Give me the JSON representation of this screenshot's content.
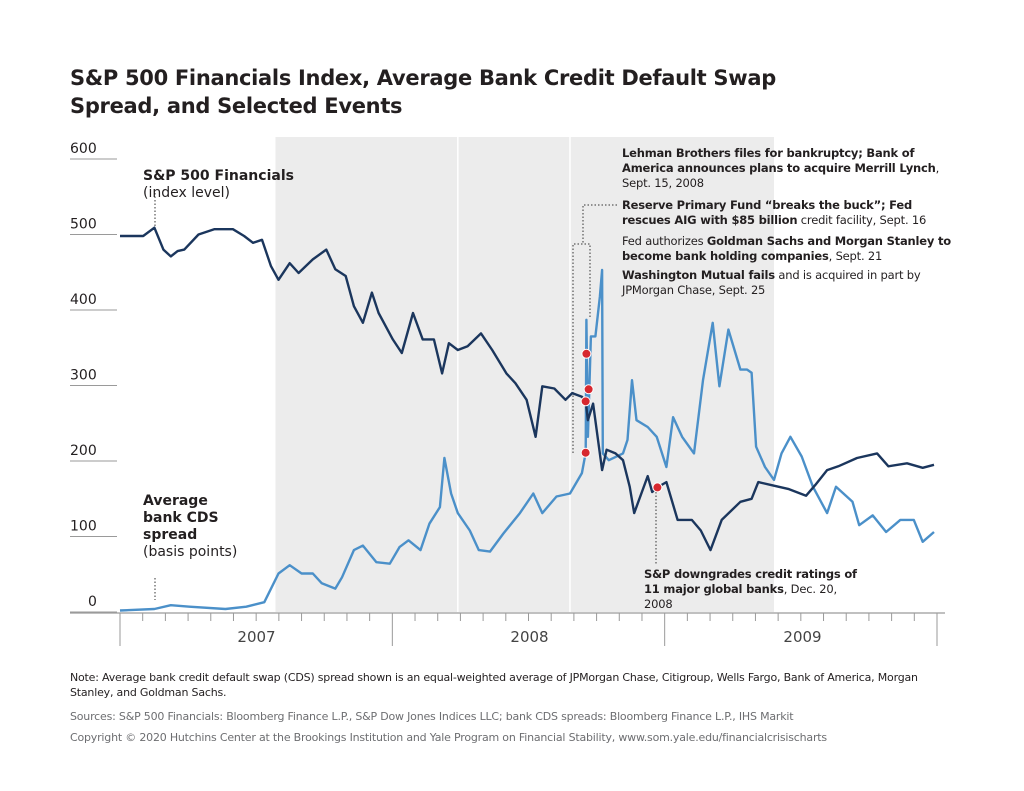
{
  "title": "S&P 500 Financials Index, Average Bank Credit Default Swap Spread, and Selected Events",
  "colors": {
    "financials": "#1b365d",
    "cds": "#4b90c9",
    "shading": "#ececec",
    "event_dot": "#d7282f"
  },
  "chart_data": {
    "type": "line",
    "title": "S&P 500 Financials Index, Average Bank Credit Default Swap Spread, and Selected Events",
    "x_range": [
      "2007-01-01",
      "2009-12-31"
    ],
    "x_tick_labels": [
      "2007",
      "2008",
      "2009"
    ],
    "ylim": [
      0,
      600
    ],
    "y_ticks": [
      0,
      100,
      200,
      300,
      400,
      500,
      600
    ],
    "grid": false,
    "legend": "inline labels",
    "series_labels": {
      "financials": {
        "name": "S&P 500 Financials",
        "unit": "(index level)"
      },
      "cds": {
        "name_lines": [
          "Average",
          "bank CDS",
          "spread"
        ],
        "unit": "(basis points)"
      }
    },
    "shaded_periods": [
      [
        "2007-07-28",
        "2008-03-27"
      ],
      [
        "2008-03-29",
        "2008-08-24"
      ],
      [
        "2008-08-26",
        "2009-05-25"
      ]
    ],
    "series": [
      {
        "name": "S&P 500 Financials",
        "key": "financials",
        "points": [
          [
            "2007-01-01",
            498
          ],
          [
            "2007-02-01",
            498
          ],
          [
            "2007-02-16",
            509
          ],
          [
            "2007-02-28",
            480
          ],
          [
            "2007-03-10",
            471
          ],
          [
            "2007-03-19",
            478
          ],
          [
            "2007-03-28",
            480
          ],
          [
            "2007-04-16",
            500
          ],
          [
            "2007-05-07",
            507
          ],
          [
            "2007-06-01",
            507
          ],
          [
            "2007-06-16",
            498
          ],
          [
            "2007-06-28",
            489
          ],
          [
            "2007-07-10",
            493
          ],
          [
            "2007-07-22",
            458
          ],
          [
            "2007-08-01",
            440
          ],
          [
            "2007-08-16",
            462
          ],
          [
            "2007-08-28",
            449
          ],
          [
            "2007-09-16",
            467
          ],
          [
            "2007-10-04",
            480
          ],
          [
            "2007-10-16",
            454
          ],
          [
            "2007-10-30",
            445
          ],
          [
            "2007-11-10",
            405
          ],
          [
            "2007-11-22",
            383
          ],
          [
            "2007-12-04",
            423
          ],
          [
            "2007-12-13",
            396
          ],
          [
            "2008-01-01",
            361
          ],
          [
            "2008-01-13",
            343
          ],
          [
            "2008-01-28",
            396
          ],
          [
            "2008-02-10",
            361
          ],
          [
            "2008-02-25",
            361
          ],
          [
            "2008-03-07",
            316
          ],
          [
            "2008-03-16",
            356
          ],
          [
            "2008-03-28",
            347
          ],
          [
            "2008-04-10",
            352
          ],
          [
            "2008-04-28",
            369
          ],
          [
            "2008-05-13",
            347
          ],
          [
            "2008-06-01",
            316
          ],
          [
            "2008-06-13",
            303
          ],
          [
            "2008-06-28",
            281
          ],
          [
            "2008-07-10",
            232
          ],
          [
            "2008-07-19",
            299
          ],
          [
            "2008-08-04",
            296
          ],
          [
            "2008-08-19",
            281
          ],
          [
            "2008-08-28",
            290
          ],
          [
            "2008-09-10",
            285
          ],
          [
            "2008-09-15",
            279
          ],
          [
            "2008-09-18",
            254
          ],
          [
            "2008-09-25",
            276
          ],
          [
            "2008-10-07",
            188
          ],
          [
            "2008-10-13",
            215
          ],
          [
            "2008-10-25",
            210
          ],
          [
            "2008-11-04",
            201
          ],
          [
            "2008-11-13",
            166
          ],
          [
            "2008-11-19",
            131
          ],
          [
            "2008-12-07",
            180
          ],
          [
            "2008-12-13",
            159
          ],
          [
            "2008-12-20",
            165
          ],
          [
            "2009-01-01",
            172
          ],
          [
            "2009-01-16",
            122
          ],
          [
            "2009-02-04",
            122
          ],
          [
            "2009-02-16",
            108
          ],
          [
            "2009-03-01",
            82
          ],
          [
            "2009-03-16",
            122
          ],
          [
            "2009-04-10",
            146
          ],
          [
            "2009-04-25",
            150
          ],
          [
            "2009-05-04",
            172
          ],
          [
            "2009-05-22",
            168
          ],
          [
            "2009-06-13",
            163
          ],
          [
            "2009-07-07",
            154
          ],
          [
            "2009-07-19",
            168
          ],
          [
            "2009-08-04",
            188
          ],
          [
            "2009-08-19",
            193
          ],
          [
            "2009-09-13",
            204
          ],
          [
            "2009-10-10",
            210
          ],
          [
            "2009-10-25",
            193
          ],
          [
            "2009-11-19",
            197
          ],
          [
            "2009-12-10",
            191
          ],
          [
            "2009-12-25",
            195
          ]
        ]
      },
      {
        "name": "Average bank CDS spread",
        "key": "cds",
        "points": [
          [
            "2007-01-01",
            2
          ],
          [
            "2007-02-16",
            4
          ],
          [
            "2007-03-10",
            9
          ],
          [
            "2007-04-04",
            7
          ],
          [
            "2007-05-22",
            4
          ],
          [
            "2007-06-19",
            7
          ],
          [
            "2007-07-13",
            13
          ],
          [
            "2007-08-01",
            51
          ],
          [
            "2007-08-16",
            62
          ],
          [
            "2007-09-01",
            51
          ],
          [
            "2007-09-16",
            51
          ],
          [
            "2007-09-28",
            38
          ],
          [
            "2007-10-16",
            31
          ],
          [
            "2007-10-25",
            46
          ],
          [
            "2007-11-10",
            82
          ],
          [
            "2007-11-22",
            88
          ],
          [
            "2007-12-10",
            66
          ],
          [
            "2007-12-28",
            64
          ],
          [
            "2008-01-10",
            86
          ],
          [
            "2008-01-22",
            95
          ],
          [
            "2008-02-07",
            82
          ],
          [
            "2008-02-19",
            117
          ],
          [
            "2008-03-04",
            139
          ],
          [
            "2008-03-10",
            204
          ],
          [
            "2008-03-19",
            157
          ],
          [
            "2008-03-28",
            131
          ],
          [
            "2008-04-13",
            108
          ],
          [
            "2008-04-25",
            82
          ],
          [
            "2008-05-10",
            80
          ],
          [
            "2008-05-28",
            104
          ],
          [
            "2008-06-19",
            131
          ],
          [
            "2008-07-07",
            157
          ],
          [
            "2008-07-19",
            131
          ],
          [
            "2008-08-07",
            153
          ],
          [
            "2008-08-25",
            157
          ],
          [
            "2008-09-10",
            184
          ],
          [
            "2008-09-15",
            211
          ],
          [
            "2008-09-16",
            387
          ],
          [
            "2008-09-18",
            232
          ],
          [
            "2008-09-22",
            365
          ],
          [
            "2008-09-28",
            365
          ],
          [
            "2008-10-04",
            418
          ],
          [
            "2008-10-07",
            453
          ],
          [
            "2008-10-08",
            210
          ],
          [
            "2008-10-16",
            201
          ],
          [
            "2008-11-04",
            210
          ],
          [
            "2008-11-10",
            228
          ],
          [
            "2008-11-16",
            307
          ],
          [
            "2008-11-22",
            254
          ],
          [
            "2008-12-07",
            245
          ],
          [
            "2008-12-19",
            232
          ],
          [
            "2009-01-01",
            192
          ],
          [
            "2009-01-10",
            258
          ],
          [
            "2009-01-22",
            232
          ],
          [
            "2009-02-07",
            210
          ],
          [
            "2009-02-19",
            307
          ],
          [
            "2009-03-04",
            383
          ],
          [
            "2009-03-13",
            299
          ],
          [
            "2009-03-25",
            374
          ],
          [
            "2009-04-10",
            321
          ],
          [
            "2009-04-19",
            321
          ],
          [
            "2009-04-25",
            317
          ],
          [
            "2009-05-01",
            219
          ],
          [
            "2009-05-13",
            192
          ],
          [
            "2009-05-25",
            175
          ],
          [
            "2009-06-04",
            210
          ],
          [
            "2009-06-16",
            232
          ],
          [
            "2009-07-01",
            206
          ],
          [
            "2009-07-16",
            166
          ],
          [
            "2009-08-04",
            131
          ],
          [
            "2009-08-16",
            166
          ],
          [
            "2009-09-07",
            146
          ],
          [
            "2009-09-16",
            115
          ],
          [
            "2009-10-04",
            128
          ],
          [
            "2009-10-22",
            106
          ],
          [
            "2009-11-10",
            122
          ],
          [
            "2009-11-28",
            122
          ],
          [
            "2009-12-10",
            93
          ],
          [
            "2009-12-25",
            106
          ]
        ]
      }
    ],
    "event_markers": [
      [
        "2008-09-15",
        211
      ],
      [
        "2008-09-16",
        342
      ],
      [
        "2008-09-15",
        279
      ],
      [
        "2008-09-19",
        295
      ],
      [
        "2008-12-20",
        165
      ]
    ]
  },
  "annotations": {
    "lehman": [
      {
        "t": "Lehman Brothers files for bankruptcy; Bank of America announces plans to acquire Merrill Lynch",
        "b": true
      },
      {
        "t": ", Sept. 15, 2008",
        "b": false
      }
    ],
    "reserve": [
      {
        "t": "Reserve Primary Fund “breaks the buck”; Fed rescues AIG with $85 billion",
        "b": true
      },
      {
        "t": " credit facility, Sept. 16",
        "b": false
      }
    ],
    "goldman": [
      {
        "t": "Fed authorizes ",
        "b": false
      },
      {
        "t": "Goldman Sachs and Morgan Stanley to become bank holding companies",
        "b": true
      },
      {
        "t": ", Sept. 21",
        "b": false
      }
    ],
    "wamu": [
      {
        "t": "Washington Mutual fails",
        "b": true
      },
      {
        "t": " and is acquired in part by JPMorgan Chase, Sept. 25",
        "b": false
      }
    ],
    "downgrade": [
      {
        "t": "S&P downgrades credit ratings of 11 major global banks",
        "b": true
      },
      {
        "t": ", Dec. 20, 2008",
        "b": false
      }
    ]
  },
  "footer": {
    "note": "Note: Average bank credit default swap (CDS) spread shown is an equal-weighted average of JPMorgan Chase, Citigroup, Wells Fargo, Bank of America, Morgan Stanley, and Goldman Sachs.",
    "sources": "Sources: S&P 500 Financials: Bloomberg Finance L.P., S&P Dow Jones Indices LLC; bank CDS spreads: Bloomberg Finance L.P., IHS Markit",
    "copyright": "Copyright © 2020 Hutchins Center at the Brookings Institution and Yale Program on Financial Stability, www.som.yale.edu/financialcrisischarts"
  }
}
